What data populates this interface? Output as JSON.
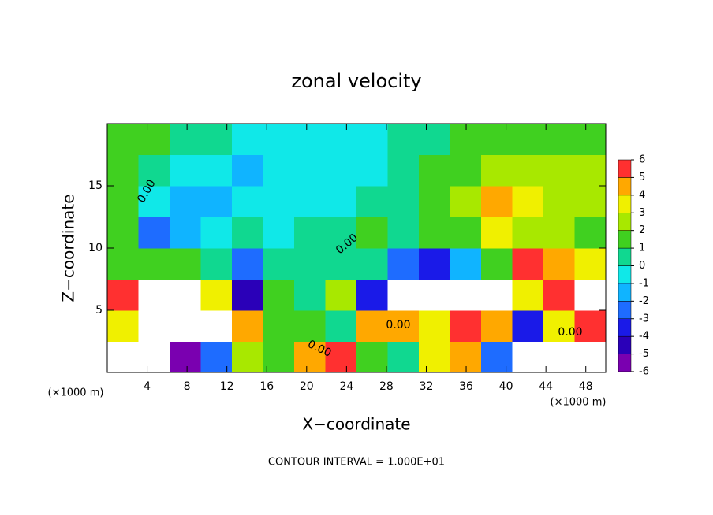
{
  "chart_data": {
    "type": "contourf",
    "title": "zonal velocity",
    "xlabel": "X−coordinate",
    "ylabel": "Z−coordinate",
    "x_unit_left": "(×1000 m)",
    "x_unit_right": "(×1000 m)",
    "footer": "CONTOUR INTERVAL = 1.000E+01",
    "xlim": [
      0,
      50
    ],
    "ylim": [
      0,
      20
    ],
    "xticks": [
      4,
      8,
      12,
      16,
      20,
      24,
      28,
      32,
      36,
      40,
      44,
      48
    ],
    "yticks": [
      5,
      10,
      15
    ],
    "levels": [
      -6,
      -5,
      -4,
      -3,
      -2,
      -1,
      0,
      1,
      2,
      3,
      4,
      5,
      6
    ],
    "colors": [
      "#7a00b0",
      "#2a00b8",
      "#1a1ae8",
      "#1e6cff",
      "#10b4ff",
      "#10e8e8",
      "#10d890",
      "#40d020",
      "#a8e800",
      "#f0f000",
      "#ffa800",
      "#ff3030"
    ],
    "over_color": "#ffffff",
    "contour_labels": [
      "0.00",
      "0.00",
      "0.00",
      "0.00",
      "0.00"
    ],
    "z": [
      [
        -8,
        -8,
        -6,
        -3,
        2,
        1,
        4,
        5,
        1,
        0,
        3,
        4,
        -3,
        -8,
        -8,
        -8
      ],
      [
        3,
        8,
        8,
        7,
        4,
        1,
        1,
        0,
        4,
        4,
        3,
        5,
        4,
        -4,
        3,
        5
      ],
      [
        6,
        9,
        8,
        3,
        -5,
        1,
        0,
        2,
        -4,
        -8,
        -8,
        -8,
        -7,
        3,
        6,
        8
      ],
      [
        1,
        1,
        1,
        0,
        -3,
        0,
        0,
        0,
        0,
        -3,
        -4,
        -2,
        1,
        5,
        4,
        3
      ],
      [
        1,
        -3,
        -2,
        -1,
        0,
        -1,
        0,
        0,
        1,
        0,
        1,
        1,
        3,
        2,
        2,
        1
      ],
      [
        1,
        -1,
        -2,
        -2,
        -1,
        -1,
        -1,
        -1,
        0,
        0,
        1,
        2,
        4,
        3,
        2,
        2
      ],
      [
        1,
        0,
        -1,
        -1,
        -2,
        -1,
        -1,
        -1,
        -1,
        0,
        1,
        1,
        2,
        2,
        2,
        2
      ],
      [
        1,
        1,
        0,
        0,
        -1,
        -1,
        -1,
        -1,
        -1,
        0,
        0,
        1,
        1,
        1,
        1,
        1
      ]
    ]
  }
}
